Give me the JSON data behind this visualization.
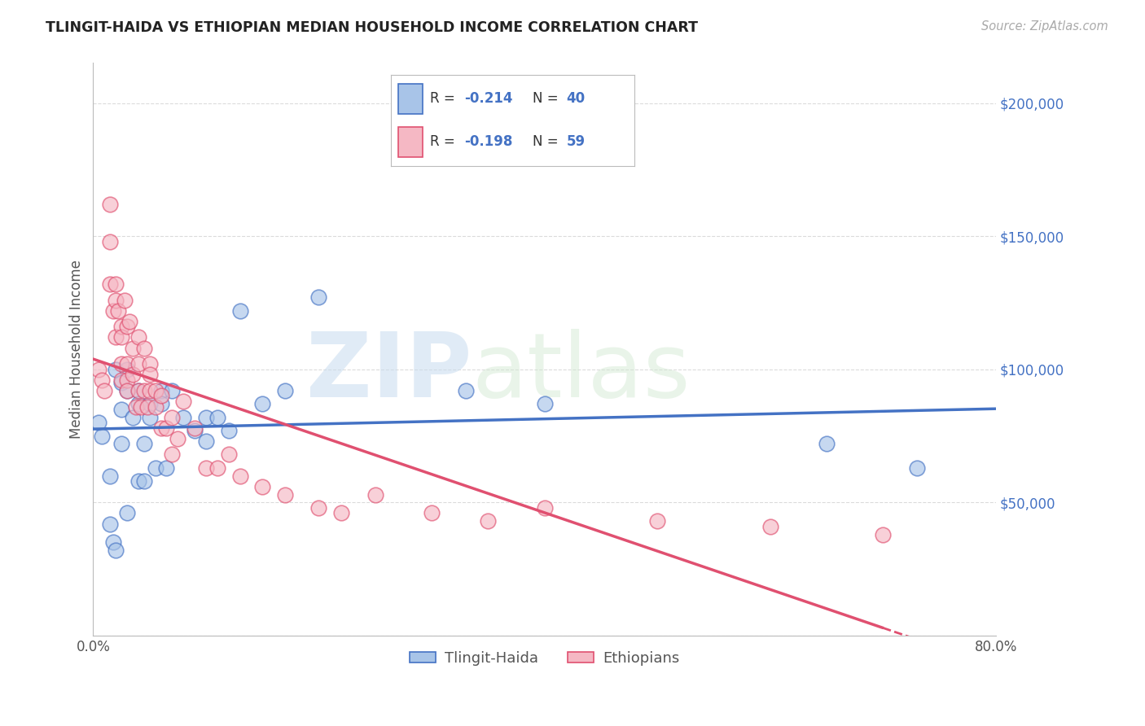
{
  "title": "TLINGIT-HAIDA VS ETHIOPIAN MEDIAN HOUSEHOLD INCOME CORRELATION CHART",
  "source": "Source: ZipAtlas.com",
  "ylabel": "Median Household Income",
  "watermark_zip": "ZIP",
  "watermark_atlas": "atlas",
  "legend_blue_r": "-0.214",
  "legend_blue_n": "40",
  "legend_pink_r": "-0.198",
  "legend_pink_n": "59",
  "blue_fill": "#A8C4E8",
  "pink_fill": "#F5B8C4",
  "blue_edge": "#4472C4",
  "pink_edge": "#E05070",
  "blue_line": "#4472C4",
  "pink_line": "#E05070",
  "grid_color": "#CCCCCC",
  "bg_color": "#FFFFFF",
  "tlingit_x": [
    0.005,
    0.008,
    0.015,
    0.015,
    0.018,
    0.02,
    0.02,
    0.025,
    0.025,
    0.025,
    0.03,
    0.03,
    0.03,
    0.035,
    0.04,
    0.04,
    0.04,
    0.045,
    0.045,
    0.05,
    0.05,
    0.055,
    0.06,
    0.06,
    0.065,
    0.07,
    0.08,
    0.09,
    0.1,
    0.1,
    0.11,
    0.12,
    0.13,
    0.15,
    0.17,
    0.2,
    0.33,
    0.4,
    0.65,
    0.73
  ],
  "tlingit_y": [
    80000,
    75000,
    60000,
    42000,
    35000,
    32000,
    100000,
    95000,
    85000,
    72000,
    46000,
    100000,
    92000,
    82000,
    58000,
    92000,
    87000,
    72000,
    58000,
    87000,
    82000,
    63000,
    92000,
    87000,
    63000,
    92000,
    82000,
    77000,
    73000,
    82000,
    82000,
    77000,
    122000,
    87000,
    92000,
    127000,
    92000,
    87000,
    72000,
    63000
  ],
  "ethiopian_x": [
    0.005,
    0.008,
    0.01,
    0.015,
    0.015,
    0.015,
    0.018,
    0.02,
    0.02,
    0.02,
    0.022,
    0.025,
    0.025,
    0.025,
    0.025,
    0.028,
    0.03,
    0.03,
    0.03,
    0.03,
    0.032,
    0.035,
    0.035,
    0.038,
    0.04,
    0.04,
    0.04,
    0.042,
    0.045,
    0.045,
    0.048,
    0.05,
    0.05,
    0.05,
    0.055,
    0.055,
    0.06,
    0.06,
    0.065,
    0.07,
    0.07,
    0.075,
    0.08,
    0.09,
    0.1,
    0.11,
    0.12,
    0.13,
    0.15,
    0.17,
    0.2,
    0.22,
    0.25,
    0.3,
    0.35,
    0.4,
    0.5,
    0.6,
    0.7
  ],
  "ethiopian_y": [
    100000,
    96000,
    92000,
    162000,
    148000,
    132000,
    122000,
    112000,
    132000,
    126000,
    122000,
    116000,
    112000,
    102000,
    96000,
    126000,
    116000,
    102000,
    96000,
    92000,
    118000,
    108000,
    98000,
    86000,
    112000,
    102000,
    92000,
    86000,
    108000,
    92000,
    86000,
    102000,
    92000,
    98000,
    86000,
    92000,
    78000,
    90000,
    78000,
    82000,
    68000,
    74000,
    88000,
    78000,
    63000,
    63000,
    68000,
    60000,
    56000,
    53000,
    48000,
    46000,
    53000,
    46000,
    43000,
    48000,
    43000,
    41000,
    38000
  ],
  "yticks": [
    0,
    50000,
    100000,
    150000,
    200000
  ],
  "xlim": [
    0.0,
    0.8
  ],
  "ylim": [
    0,
    215000
  ]
}
